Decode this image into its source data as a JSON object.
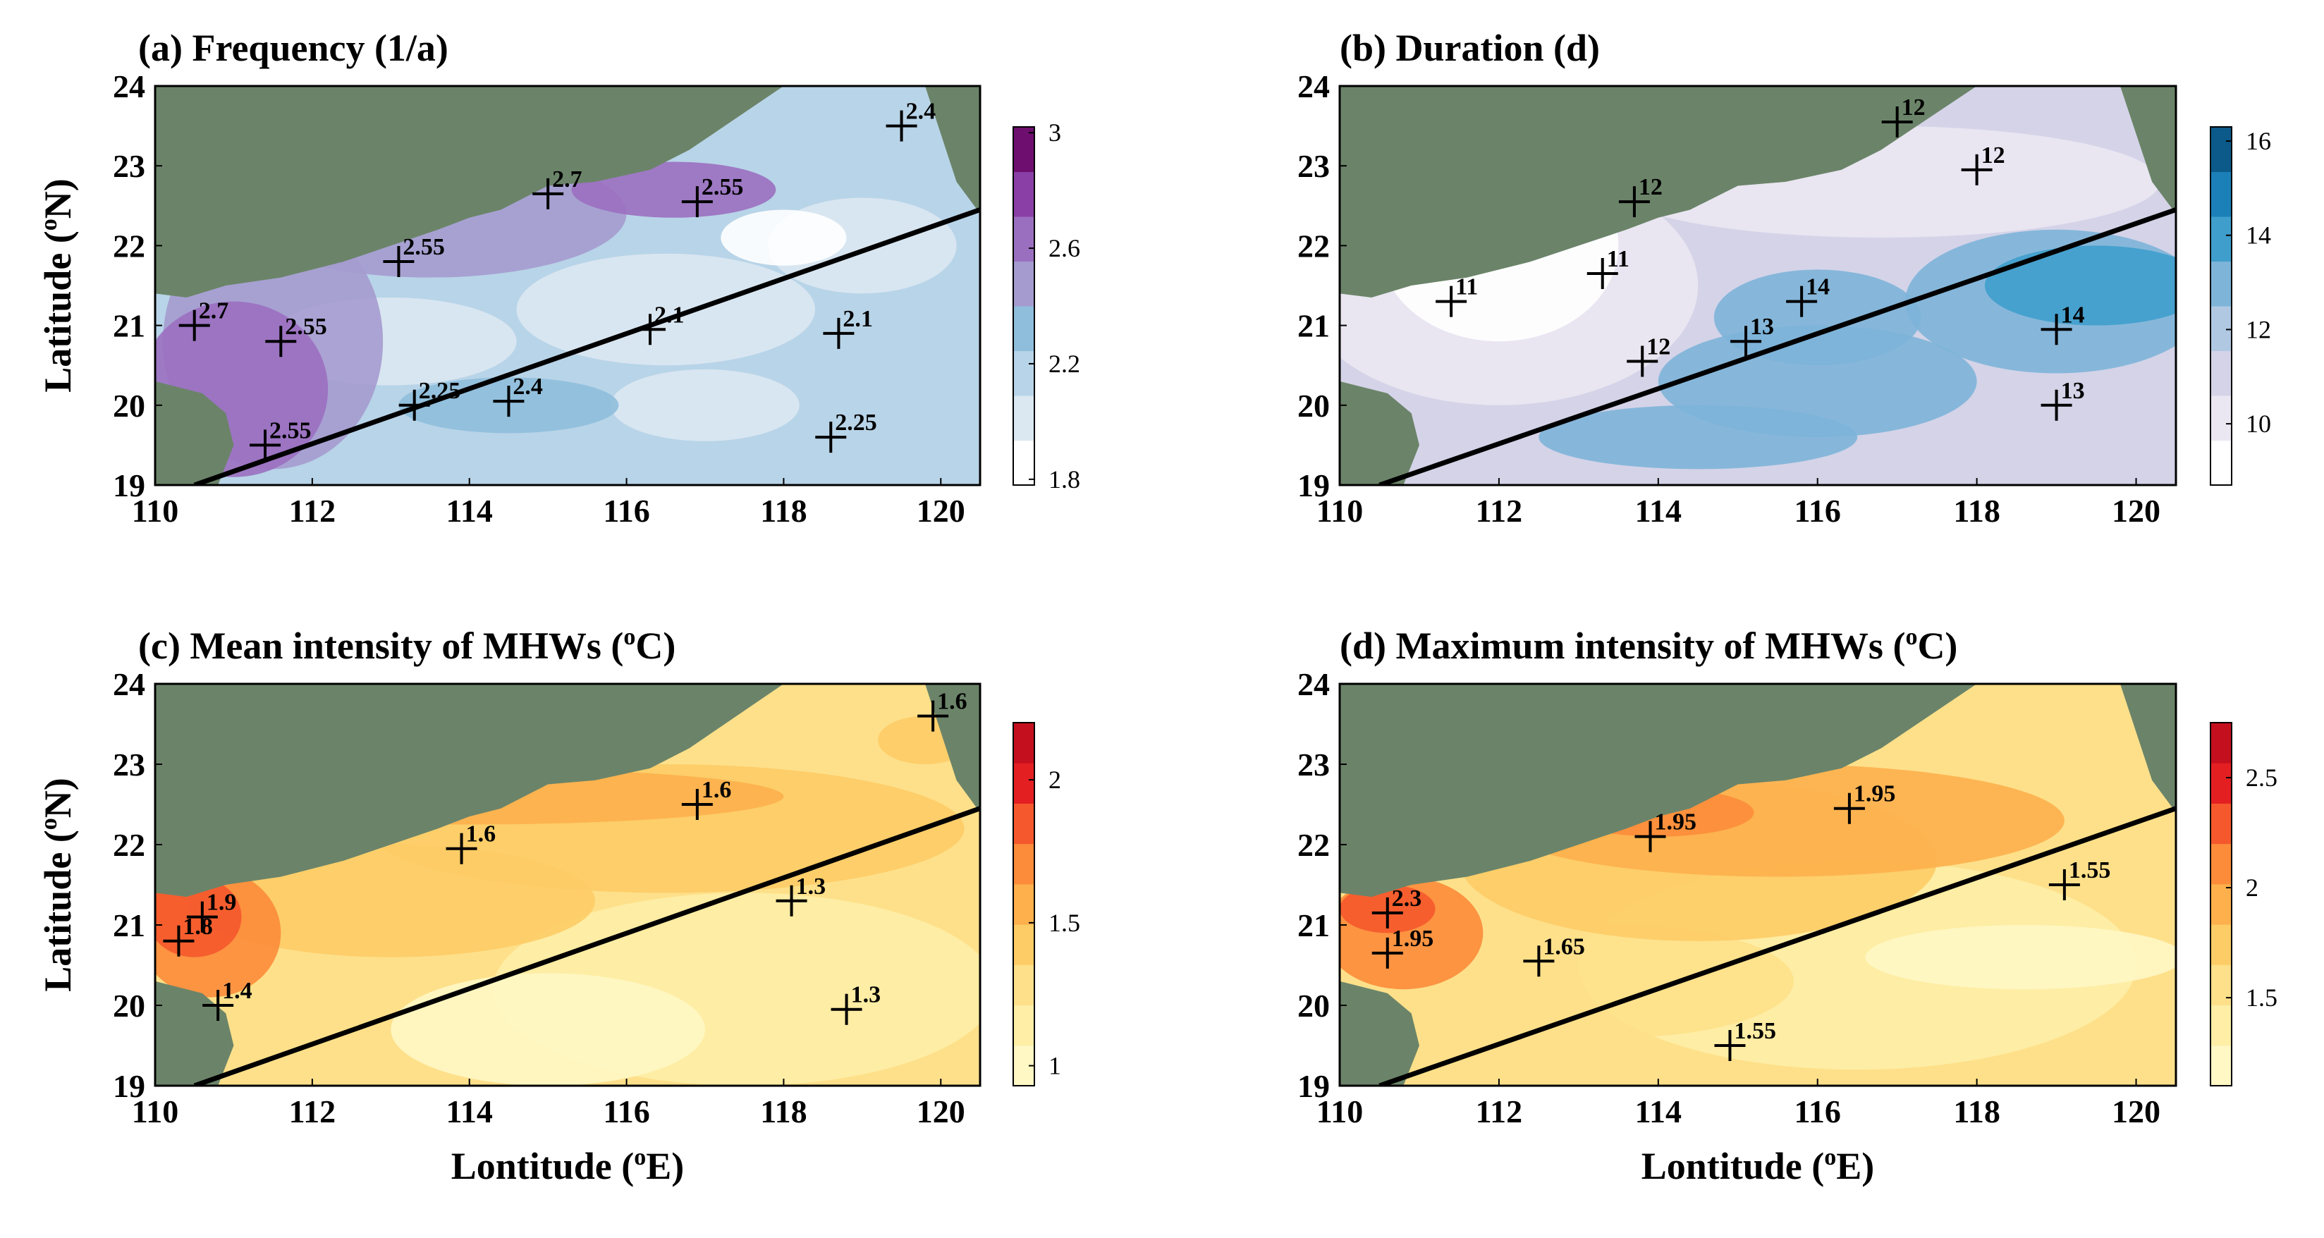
{
  "figure": {
    "x_axis_label": "Lontitude",
    "x_axis_unit": "E",
    "x_axis_unit_sup": "o",
    "y_axis_label": "Latitude",
    "y_axis_unit": "N",
    "y_axis_unit_sup": "o",
    "x_ticks": [
      "110",
      "112",
      "114",
      "116",
      "118",
      "120"
    ],
    "y_ticks": [
      "19",
      "20",
      "21",
      "22",
      "23",
      "24"
    ],
    "lon_range": [
      110,
      120.5
    ],
    "lat_range": [
      19,
      24
    ],
    "land_color": "#6b8469",
    "boundary_line": {
      "from": [
        110.5,
        19.0
      ],
      "to": [
        120.5,
        22.45
      ]
    }
  },
  "panels": [
    {
      "title_prefix": "(a) Frequency (1/a)",
      "title_sup": "",
      "title_suffix": "",
      "colorbar": {
        "ticks": [
          "1.8",
          "2.2",
          "2.6",
          "3"
        ],
        "range": [
          1.78,
          3.02
        ],
        "colors": [
          "#ffffff",
          "#dbe8f2",
          "#b8d4e8",
          "#8fbedc",
          "#a59bcf",
          "#9b6fc0",
          "#8a3fa6",
          "#6e0e6e"
        ]
      },
      "points": [
        {
          "lon": 110.5,
          "lat": 21.0,
          "label": "2.7"
        },
        {
          "lon": 111.6,
          "lat": 20.8,
          "label": "2.55"
        },
        {
          "lon": 111.4,
          "lat": 19.5,
          "label": "2.55"
        },
        {
          "lon": 113.1,
          "lat": 21.8,
          "label": "2.55"
        },
        {
          "lon": 115.0,
          "lat": 22.65,
          "label": "2.7"
        },
        {
          "lon": 113.3,
          "lat": 20.0,
          "label": "2.25"
        },
        {
          "lon": 114.5,
          "lat": 20.05,
          "label": "2.4"
        },
        {
          "lon": 116.9,
          "lat": 22.55,
          "label": "2.55"
        },
        {
          "lon": 116.3,
          "lat": 20.95,
          "label": "2.1"
        },
        {
          "lon": 118.7,
          "lat": 20.9,
          "label": "2.1"
        },
        {
          "lon": 118.6,
          "lat": 19.6,
          "label": "2.25"
        },
        {
          "lon": 119.5,
          "lat": 23.5,
          "label": "2.4"
        }
      ]
    },
    {
      "title_prefix": "(b) Duration (d)",
      "title_sup": "",
      "title_suffix": "",
      "colorbar": {
        "ticks": [
          "10",
          "12",
          "14",
          "16"
        ],
        "range": [
          8.7,
          16.3
        ],
        "colors": [
          "#ffffff",
          "#ebe7f2",
          "#d4d3e8",
          "#b0c8e2",
          "#7db4d8",
          "#3f9ecc",
          "#1b80b8",
          "#0c5a8a"
        ]
      },
      "points": [
        {
          "lon": 111.4,
          "lat": 21.3,
          "label": "11"
        },
        {
          "lon": 113.3,
          "lat": 21.65,
          "label": "11"
        },
        {
          "lon": 113.7,
          "lat": 22.55,
          "label": "12"
        },
        {
          "lon": 113.8,
          "lat": 20.55,
          "label": "12"
        },
        {
          "lon": 115.1,
          "lat": 20.8,
          "label": "13"
        },
        {
          "lon": 115.8,
          "lat": 21.3,
          "label": "14"
        },
        {
          "lon": 117.0,
          "lat": 23.55,
          "label": "12"
        },
        {
          "lon": 118.0,
          "lat": 22.95,
          "label": "12"
        },
        {
          "lon": 119.0,
          "lat": 20.95,
          "label": "14"
        },
        {
          "lon": 119.0,
          "lat": 20.0,
          "label": "13"
        }
      ]
    },
    {
      "title_prefix": "(c) Mean intensity of MHWs (",
      "title_sup": "o",
      "title_suffix": "C)",
      "colorbar": {
        "ticks": [
          "1",
          "1.5",
          "2"
        ],
        "range": [
          0.93,
          2.2
        ],
        "colors": [
          "#fff7c4",
          "#feeea6",
          "#fee08a",
          "#fdcc66",
          "#fdb04c",
          "#fc8c3a",
          "#f5582c",
          "#e41f22",
          "#c40f1e"
        ]
      },
      "points": [
        {
          "lon": 110.3,
          "lat": 20.8,
          "label": "1.8"
        },
        {
          "lon": 110.6,
          "lat": 21.1,
          "label": "1.9"
        },
        {
          "lon": 110.8,
          "lat": 20.0,
          "label": "1.4"
        },
        {
          "lon": 113.9,
          "lat": 21.95,
          "label": "1.6"
        },
        {
          "lon": 116.9,
          "lat": 22.5,
          "label": "1.6"
        },
        {
          "lon": 118.1,
          "lat": 21.3,
          "label": "1.3"
        },
        {
          "lon": 118.8,
          "lat": 19.95,
          "label": "1.3"
        },
        {
          "lon": 119.9,
          "lat": 23.6,
          "label": "1.6"
        }
      ]
    },
    {
      "title_prefix": "(d) Maximum intensity of MHWs (",
      "title_sup": "o",
      "title_suffix": "C)",
      "colorbar": {
        "ticks": [
          "1.5",
          "2",
          "2.5"
        ],
        "range": [
          1.1,
          2.75
        ],
        "colors": [
          "#fff7c4",
          "#feeea6",
          "#fee08a",
          "#fdcc66",
          "#fdb04c",
          "#fc8c3a",
          "#f5582c",
          "#e41f22",
          "#c40f1e"
        ]
      },
      "points": [
        {
          "lon": 110.6,
          "lat": 21.15,
          "label": "2.3"
        },
        {
          "lon": 110.6,
          "lat": 20.65,
          "label": "1.95"
        },
        {
          "lon": 112.5,
          "lat": 20.55,
          "label": "1.65"
        },
        {
          "lon": 113.9,
          "lat": 22.1,
          "label": "1.95"
        },
        {
          "lon": 116.4,
          "lat": 22.45,
          "label": "1.95"
        },
        {
          "lon": 114.9,
          "lat": 19.5,
          "label": "1.55"
        },
        {
          "lon": 119.1,
          "lat": 21.5,
          "label": "1.55"
        }
      ]
    }
  ]
}
